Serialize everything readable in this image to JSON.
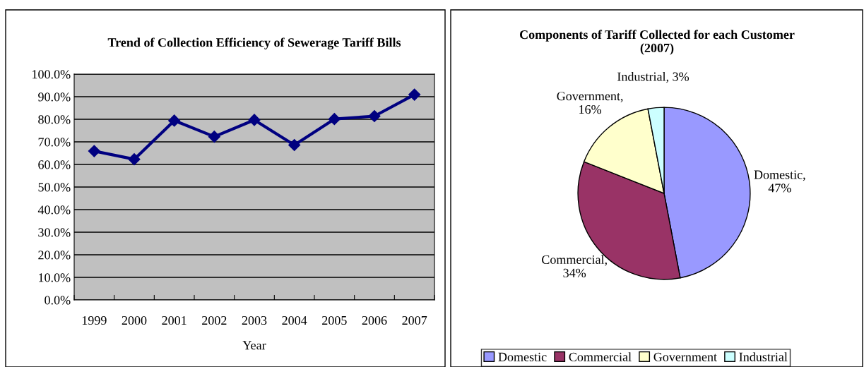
{
  "chart_data": [
    {
      "type": "line",
      "title": "Trend of Collection Efficiency of Sewerage Tariff Bills",
      "xlabel": "Year",
      "categories": [
        "1999",
        "2000",
        "2001",
        "2002",
        "2003",
        "2004",
        "2005",
        "2006",
        "2007"
      ],
      "series": [
        {
          "color": "#000080",
          "values": [
            65.9,
            62.3,
            79.4,
            72.3,
            79.7,
            68.6,
            80.1,
            81.4,
            90.9
          ]
        }
      ],
      "ylim": [
        0,
        100
      ],
      "yticks": [
        {
          "value": 0,
          "label": "0.0%"
        },
        {
          "value": 10,
          "label": "10.0%"
        },
        {
          "value": 20,
          "label": "20.0%"
        },
        {
          "value": 30,
          "label": "30.0%"
        },
        {
          "value": 40,
          "label": "40.0%"
        },
        {
          "value": 50,
          "label": "50.0%"
        },
        {
          "value": 60,
          "label": "60.0%"
        },
        {
          "value": 70,
          "label": "70.0%"
        },
        {
          "value": 80,
          "label": "80.0%"
        },
        {
          "value": 90,
          "label": "90.0%"
        },
        {
          "value": 100,
          "label": "100.0%"
        }
      ],
      "grid": "y",
      "marker": "diamond",
      "line_style": "solid",
      "legend": false
    },
    {
      "type": "pie",
      "title": "Components of Tariff Collected for each Customer\n(2007)",
      "categories": [
        "Domestic",
        "Commercial",
        "Government",
        "Industrial"
      ],
      "values": [
        47,
        34,
        16,
        3
      ],
      "colors": [
        "#9999ff",
        "#993366",
        "#ffffcc",
        "#ccffff"
      ],
      "value_labels": [
        "Domestic,\n47%",
        "Commercial,\n34%",
        "Government,\n16%",
        "Industrial, 3%"
      ],
      "legend": "bottom"
    }
  ]
}
